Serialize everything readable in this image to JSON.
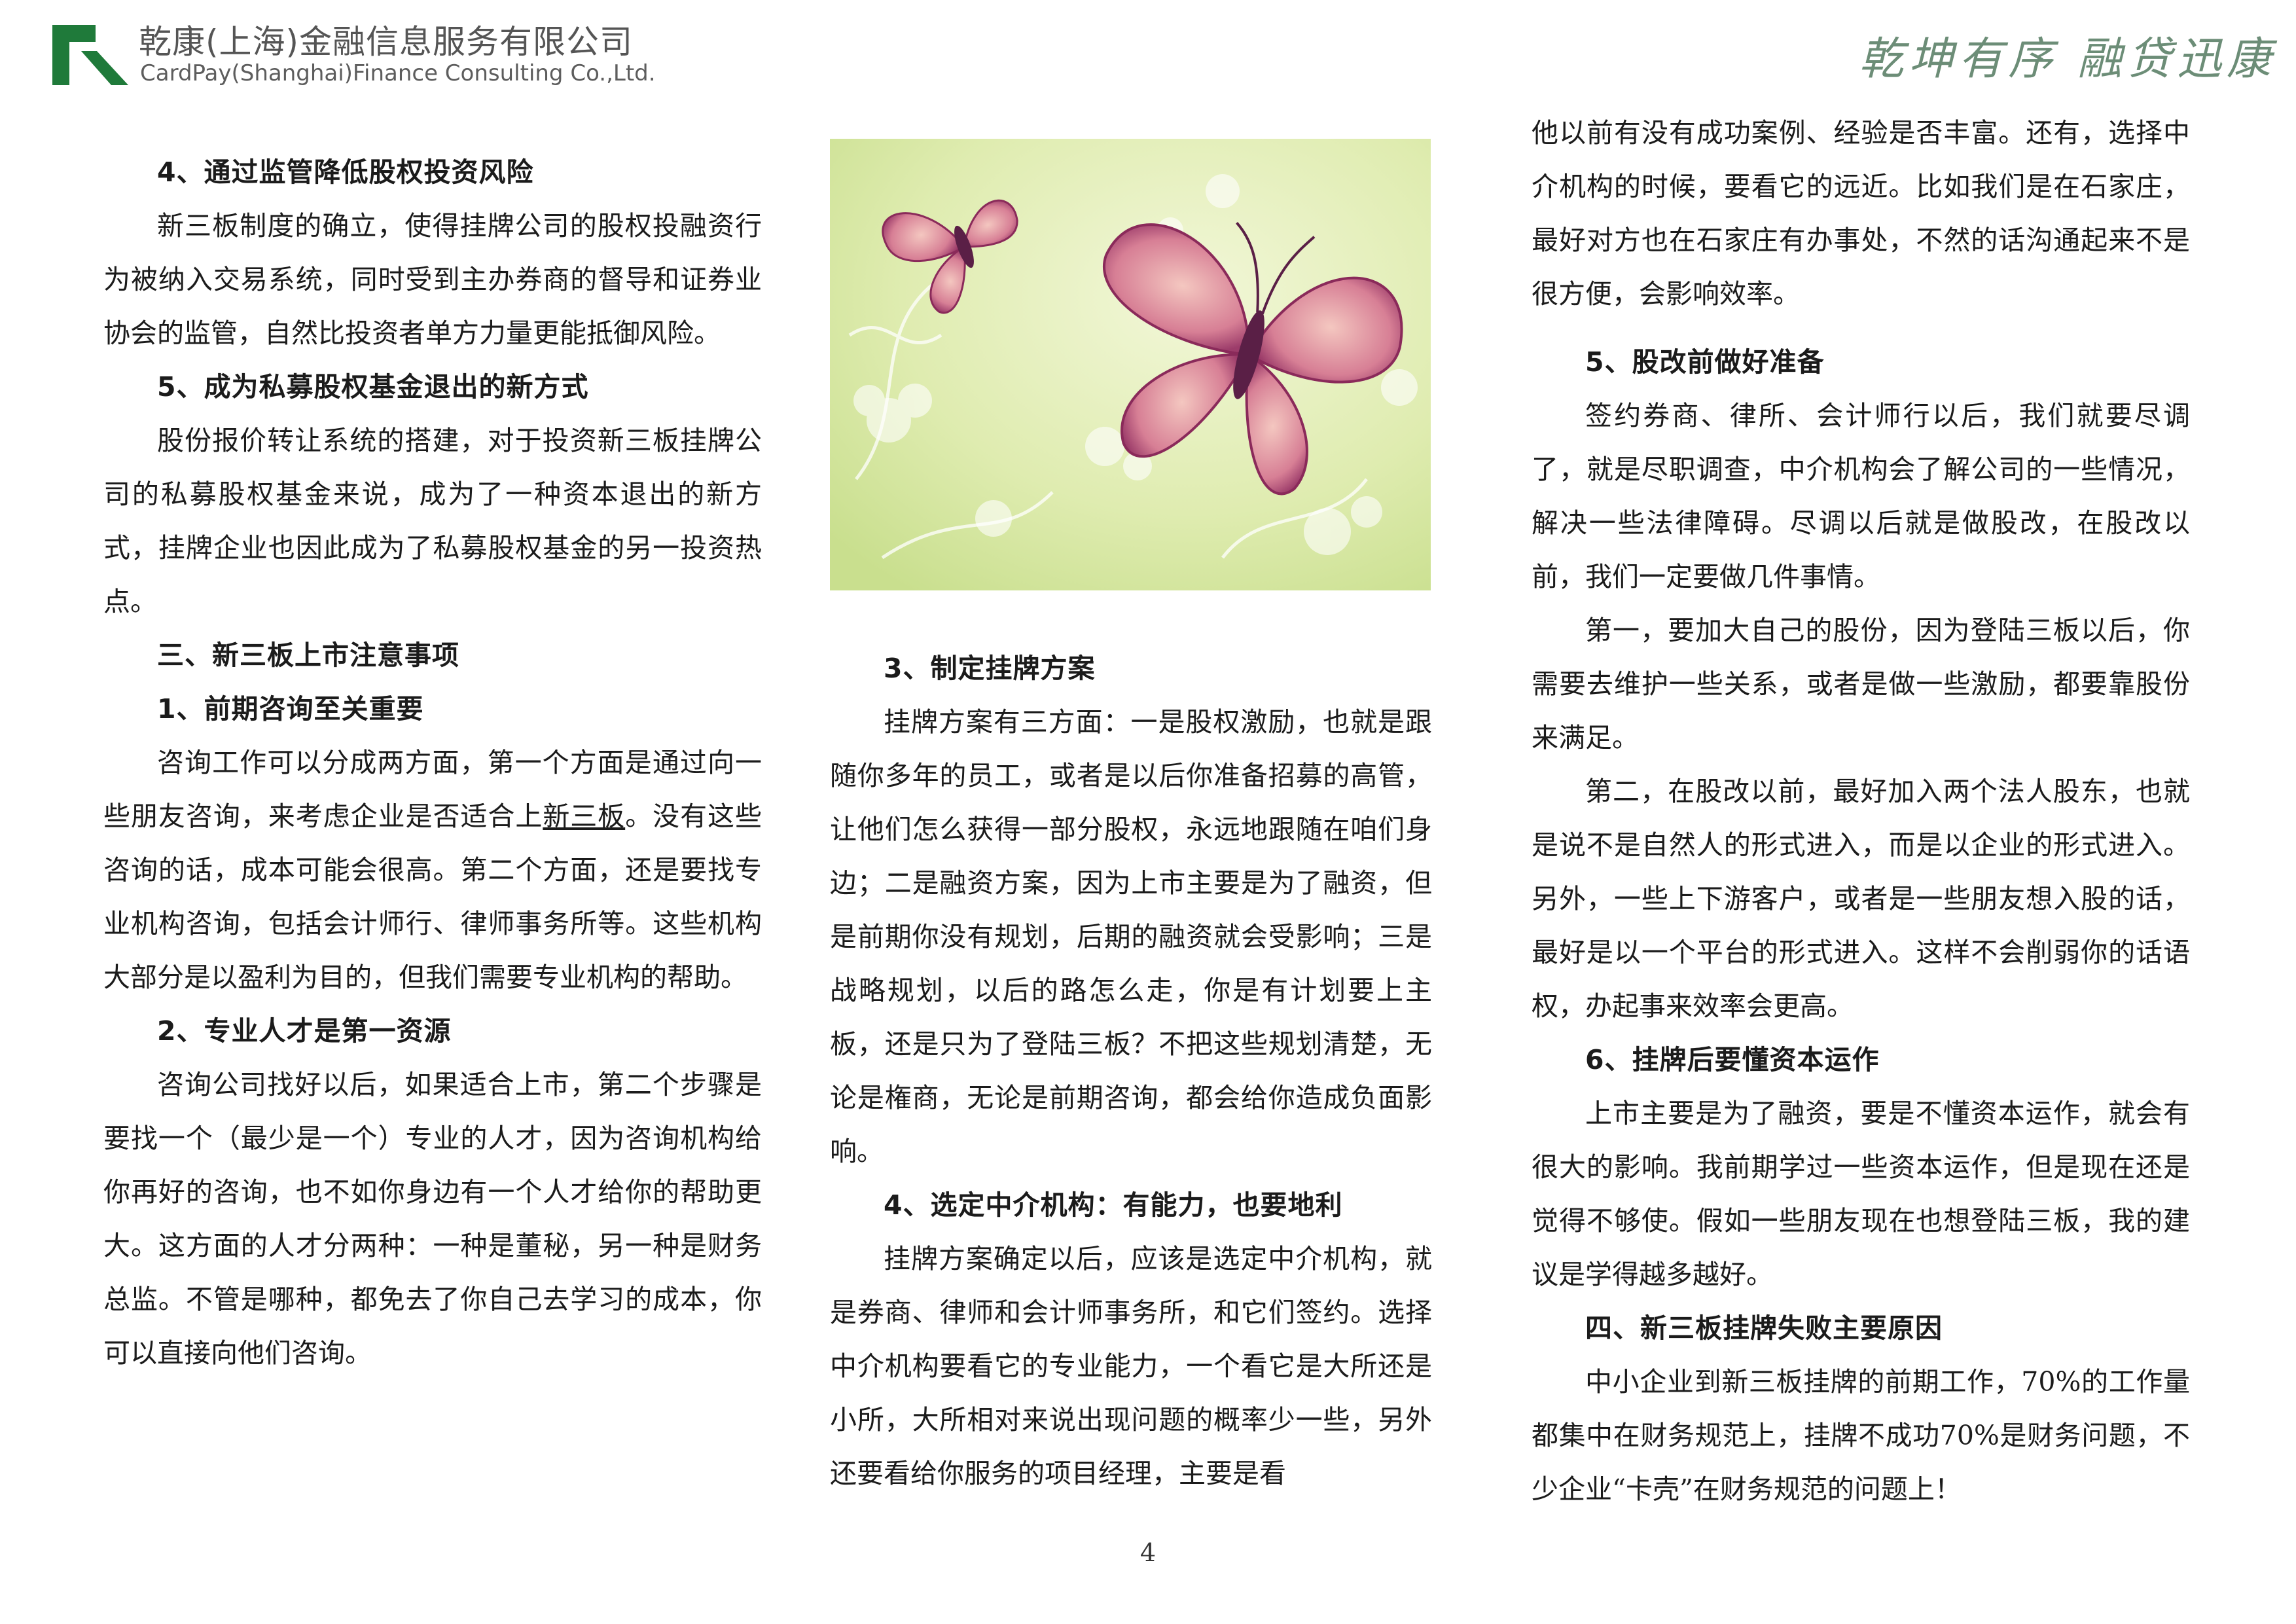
{
  "header": {
    "company_cn": "乾康(上海)金融信息服务有限公司",
    "company_en": "CardPay(Shanghai)Finance Consulting Co.,Ltd.",
    "slogan": "乾坤有序 融贷迅康",
    "logo_color": "#1f7a3a"
  },
  "image": {
    "icon": "butterflies-illustration",
    "background": "#d9e8a8"
  },
  "column1": {
    "h_4": "4、通过监管降低股权投资风险",
    "p_4": "新三板制度的确立，使得挂牌公司的股权投融资行为被纳入交易系统，同时受到主办券商的督导和证券业协会的监管，自然比投资者单方力量更能抵御风险。",
    "h_5": "5、成为私募股权基金退出的新方式",
    "p_5": "股份报价转让系统的搭建，对于投资新三板挂牌公司的私募股权基金来说，成为了一种资本退出的新方式，挂牌企业也因此成为了私募股权基金的另一投资热点。",
    "h_section3": "三、新三板上市注意事项",
    "h_1": "1、前期咨询至关重要",
    "p_1a": "咨询工作可以分成两方面，第一个方面是通过向一些朋友咨询，来考虑企业是否适合上",
    "p_1_link": "新三板",
    "p_1b": "。没有这些咨询的话，成本可能会很高。第二个方面，还是要找专业机构咨询，包括会计师行、律师事务所等。这些机构大部分是以盈利为目的，但我们需要专业机构的帮助。",
    "h_2": "2、专业人才是第一资源",
    "p_2": "咨询公司找好以后，如果适合上市，第二个步骤是要找一个（最少是一个）专业的人才，因为咨询机构给你再好的咨询，也不如你身边有一个人才给你的帮助更大。这方面的人才分两种：一种是董秘，另一种是财务总监。不管是哪种，都免去了你自己去学习的成本，你可以直接向他们咨询。"
  },
  "column2": {
    "h_3": "3、制定挂牌方案",
    "p_3": "挂牌方案有三方面：一是股权激励，也就是跟随你多年的员工，或者是以后你准备招募的高管，让他们怎么获得一部分股权，永远地跟随在咱们身边；二是融资方案，因为上市主要是为了融资，但是前期你没有规划，后期的融资就会受影响；三是战略规划，以后的路怎么走，你是有计划要上主板，还是只为了登陆三板？不把这些规划清楚，无论是権商，无论是前期咨询，都会给你造成负面影响。",
    "h_4": "4、选定中介机构：有能力，也要地利",
    "p_4": "挂牌方案确定以后，应该是选定中介机构，就是券商、律师和会计师事务所，和它们签约。选择中介机构要看它的专业能力，一个看它是大所还是小所，大所相对来说出现问题的概率少一些，另外还要看给你服务的项目经理，主要是看"
  },
  "column3": {
    "p_cont": "他以前有没有成功案例、经验是否丰富。还有，选择中介机构的时候，要看它的远近。比如我们是在石家庄，最好对方也在石家庄有办事处，不然的话沟通起来不是很方便，会影响效率。",
    "h_5": "5、股改前做好准备",
    "p_5": "签约券商、律所、会计师行以后，我们就要尽调了，就是尽职调查，中介机构会了解公司的一些情况，解决一些法律障碍。尽调以后就是做股改，在股改以前，我们一定要做几件事情。",
    "p_5a": "第一，要加大自己的股份，因为登陆三板以后，你需要去维护一些关系，或者是做一些激励，都要靠股份来满足。",
    "p_5b": "第二，在股改以前，最好加入两个法人股东，也就是说不是自然人的形式进入，而是以企业的形式进入。另外，一些上下游客户，或者是一些朋友想入股的话，最好是以一个平台的形式进入。这样不会削弱你的话语权，办起事来效率会更高。",
    "h_6": "6、挂牌后要懂资本运作",
    "p_6": "上市主要是为了融资，要是不懂资本运作，就会有很大的影响。我前期学过一些资本运作，但是现在还是觉得不够使。假如一些朋友现在也想登陆三板，我的建议是学得越多越好。",
    "h_section4": "四、新三板挂牌失败主要原因",
    "p_section4": "中小企业到新三板挂牌的前期工作，70%的工作量都集中在财务规范上，挂牌不成功70%是财务问题，不少企业“卡壳”在财务规范的问题上！"
  },
  "footer": {
    "page_number": "4"
  }
}
